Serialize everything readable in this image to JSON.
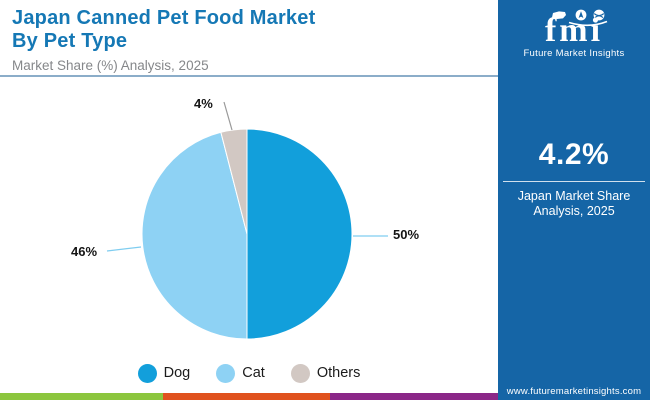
{
  "header": {
    "title_line1": "Japan Canned Pet Food Market",
    "title_line2": "By Pet Type",
    "subtitle": "Market Share (%) Analysis, 2025",
    "title_color": "#1578b5"
  },
  "chart_data": {
    "type": "pie",
    "title": "Japan Canned Pet Food Market By Pet Type",
    "subtitle": "Market Share (%) Analysis, 2025",
    "categories": [
      "Dog",
      "Cat",
      "Others"
    ],
    "values": [
      50,
      46,
      4
    ],
    "unit": "%",
    "display_labels": [
      "50%",
      "46%",
      "4%"
    ],
    "colors": [
      "#129fdb",
      "#8ed2f4",
      "#d2c8c3"
    ],
    "start_angle_deg": 0,
    "direction": "clockwise",
    "legend_position": "bottom"
  },
  "sidebar": {
    "logo_text": "fmi",
    "logo_tagline": "Future Market Insights",
    "stat_value": "4.2%",
    "stat_caption": "Japan Market Share Analysis, 2025",
    "website": "www.futuremarketinsights.com",
    "background_color": "#1565a6"
  },
  "footer_stripe_colors": [
    "#8cc63e",
    "#e0521e",
    "#8b2788"
  ]
}
